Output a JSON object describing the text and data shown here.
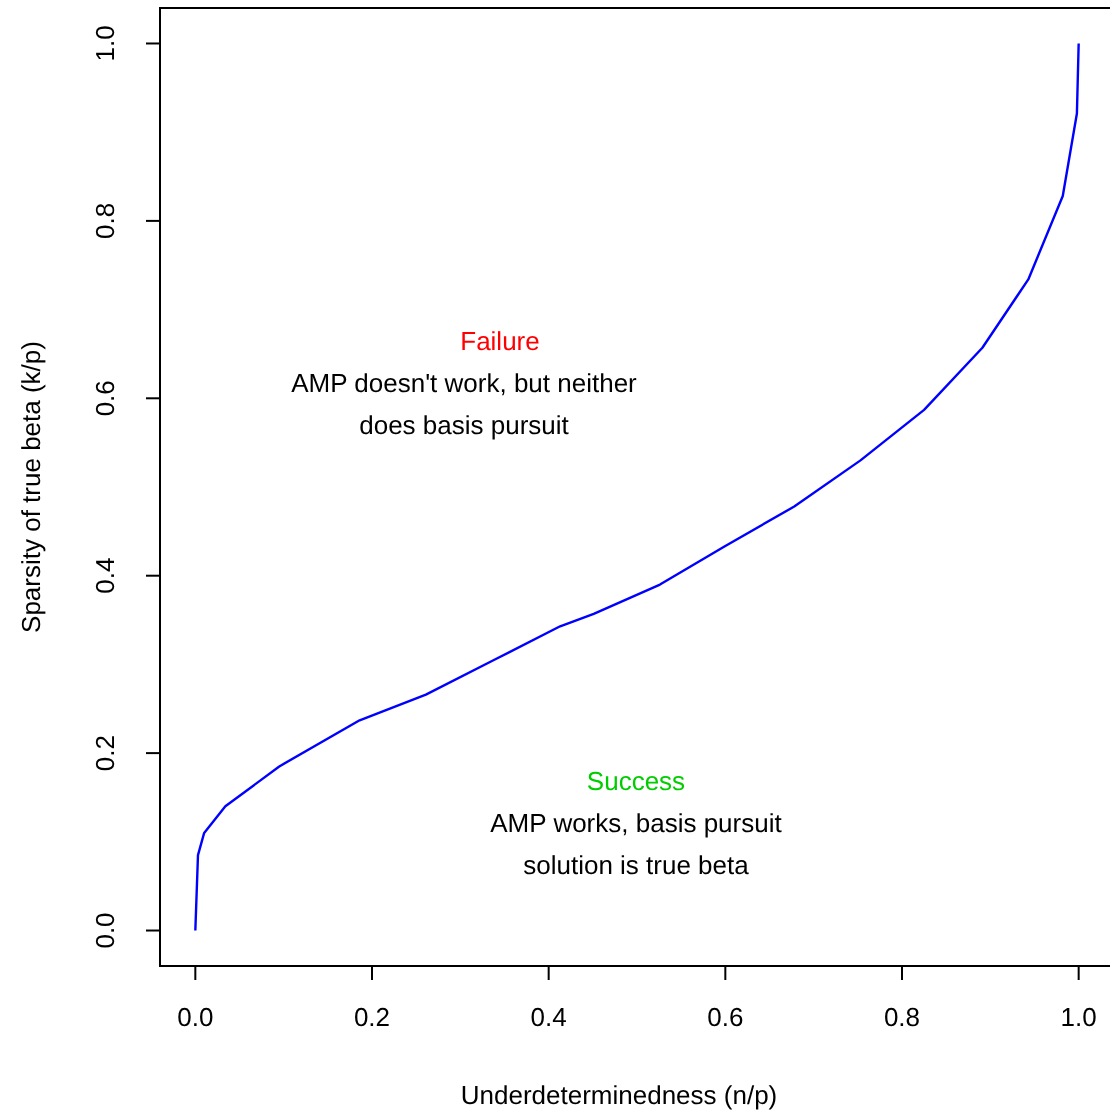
{
  "chart_data": {
    "type": "line",
    "xlabel": "Underdeterminedness (n/p)",
    "ylabel": "Sparsity of true beta (k/p)",
    "x": [
      0,
      0.003,
      0.01,
      0.034,
      0.095,
      0.186,
      0.261,
      0.338,
      0.413,
      0.451,
      0.526,
      0.599,
      0.678,
      0.753,
      0.825,
      0.891,
      0.943,
      0.982,
      0.998,
      1
    ],
    "series": [
      {
        "color": "#0000ff",
        "values": [
          0,
          0.085,
          0.11,
          0.14,
          0.185,
          0.237,
          0.266,
          0.305,
          0.343,
          0.357,
          0.39,
          0.433,
          0.478,
          0.53,
          0.587,
          0.657,
          0.734,
          0.828,
          0.921,
          1
        ]
      }
    ],
    "xlim": [
      -0.04,
      1.04
    ],
    "ylim": [
      -0.04,
      1.04
    ],
    "xticks": [
      {
        "value": 0,
        "label": "0.0"
      },
      0.2,
      0.4,
      0.6,
      0.8,
      {
        "value": 1,
        "label": "1.0"
      }
    ],
    "yticks": [
      {
        "value": 0,
        "label": "0.0"
      },
      0.2,
      0.4,
      0.6,
      0.8,
      {
        "value": 1,
        "label": "1.0"
      }
    ],
    "marker": "none",
    "line_style": "solid",
    "annotations": [
      "Failure",
      "AMP doesn't work, but neither\ndoes basis pursuit",
      "Success",
      "AMP works, basis pursuit\nsolution is true beta"
    ]
  }
}
